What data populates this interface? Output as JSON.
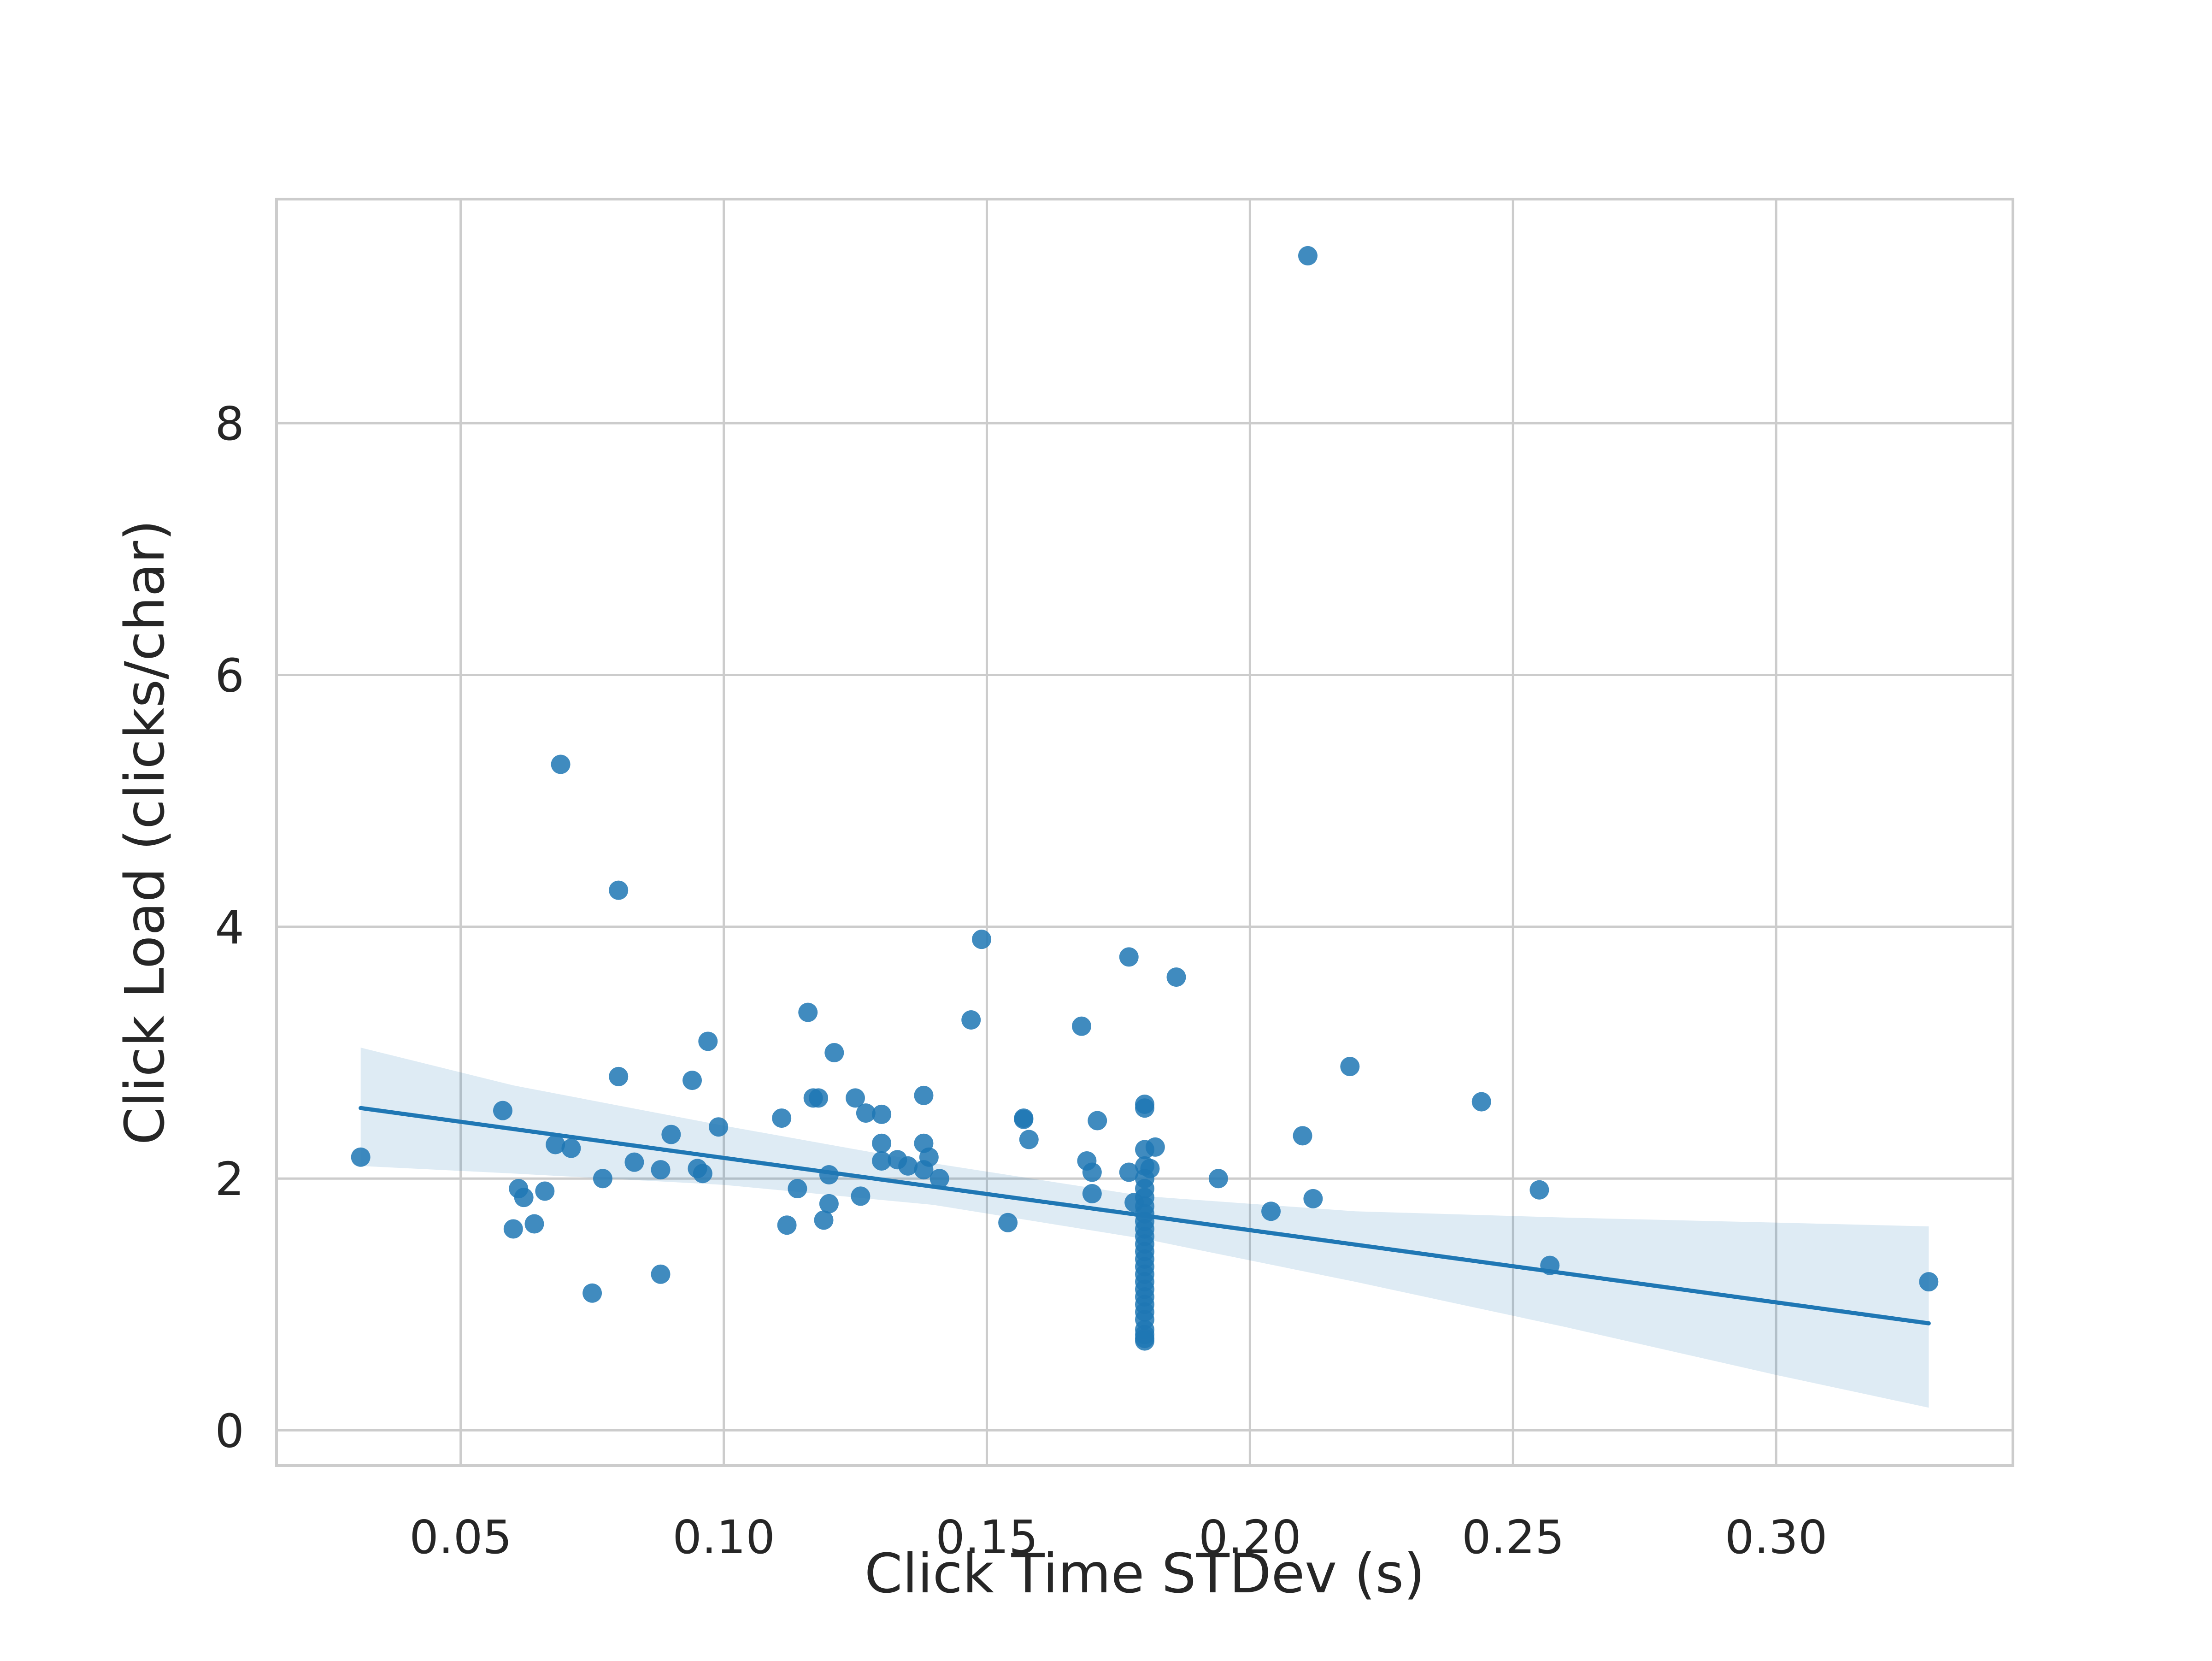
{
  "chart_data": {
    "type": "scatter",
    "title": "",
    "xlabel": "Click Time STDev (s)",
    "ylabel": "Click Load (clicks/char)",
    "xlim": [
      0.015,
      0.345
    ],
    "ylim": [
      -0.28,
      9.78
    ],
    "x_ticks": [
      0.05,
      0.1,
      0.15,
      0.2,
      0.25,
      0.3
    ],
    "x_tick_labels": [
      "0.05",
      "0.10",
      "0.15",
      "0.20",
      "0.25",
      "0.30"
    ],
    "y_ticks": [
      0,
      2,
      4,
      6,
      8
    ],
    "y_tick_labels": [
      "0",
      "2",
      "4",
      "6",
      "8"
    ],
    "grid": true,
    "legend": "none",
    "colors": {
      "points": "#1f77b4",
      "regression_line": "#1f77b4",
      "confidence_band": "#1f77b4",
      "grid": "#cccccc",
      "frame": "#cccccc",
      "background": "#ffffff"
    },
    "regression": {
      "x": [
        0.031,
        0.329
      ],
      "y": [
        2.56,
        0.85
      ]
    },
    "confidence_band": {
      "x": [
        0.031,
        0.06,
        0.1,
        0.14,
        0.18,
        0.22,
        0.26,
        0.3,
        0.329
      ],
      "upper": [
        3.04,
        2.74,
        2.42,
        2.12,
        1.86,
        1.74,
        1.69,
        1.65,
        1.62
      ],
      "lower": [
        2.1,
        2.04,
        1.95,
        1.79,
        1.52,
        1.18,
        0.82,
        0.44,
        0.18
      ]
    },
    "series": [
      {
        "points": [
          [
            0.031,
            2.17
          ],
          [
            0.058,
            2.54
          ],
          [
            0.06,
            1.6
          ],
          [
            0.061,
            1.92
          ],
          [
            0.062,
            1.85
          ],
          [
            0.064,
            1.64
          ],
          [
            0.066,
            1.9
          ],
          [
            0.068,
            2.27
          ],
          [
            0.069,
            5.29
          ],
          [
            0.071,
            2.24
          ],
          [
            0.075,
            1.09
          ],
          [
            0.077,
            2.0
          ],
          [
            0.08,
            4.29
          ],
          [
            0.08,
            2.81
          ],
          [
            0.083,
            2.13
          ],
          [
            0.088,
            1.24
          ],
          [
            0.088,
            2.07
          ],
          [
            0.09,
            2.35
          ],
          [
            0.094,
            2.78
          ],
          [
            0.095,
            2.08
          ],
          [
            0.096,
            2.04
          ],
          [
            0.097,
            3.09
          ],
          [
            0.099,
            2.41
          ],
          [
            0.111,
            2.48
          ],
          [
            0.112,
            1.63
          ],
          [
            0.114,
            1.92
          ],
          [
            0.116,
            3.32
          ],
          [
            0.117,
            2.64
          ],
          [
            0.118,
            2.64
          ],
          [
            0.119,
            1.67
          ],
          [
            0.12,
            2.03
          ],
          [
            0.12,
            1.8
          ],
          [
            0.121,
            3.0
          ],
          [
            0.125,
            2.64
          ],
          [
            0.126,
            1.86
          ],
          [
            0.127,
            2.52
          ],
          [
            0.13,
            2.51
          ],
          [
            0.13,
            2.28
          ],
          [
            0.13,
            2.14
          ],
          [
            0.133,
            2.15
          ],
          [
            0.135,
            2.1
          ],
          [
            0.138,
            2.66
          ],
          [
            0.138,
            2.28
          ],
          [
            0.138,
            2.07
          ],
          [
            0.139,
            2.17
          ],
          [
            0.141,
            2.0
          ],
          [
            0.147,
            3.26
          ],
          [
            0.149,
            3.9
          ],
          [
            0.154,
            1.65
          ],
          [
            0.157,
            2.48
          ],
          [
            0.157,
            2.47
          ],
          [
            0.158,
            2.31
          ],
          [
            0.168,
            3.21
          ],
          [
            0.169,
            2.14
          ],
          [
            0.17,
            2.05
          ],
          [
            0.17,
            1.88
          ],
          [
            0.171,
            2.46
          ],
          [
            0.177,
            3.76
          ],
          [
            0.177,
            2.05
          ],
          [
            0.178,
            1.81
          ],
          [
            0.18,
            2.59
          ],
          [
            0.18,
            2.56
          ],
          [
            0.18,
            2.23
          ],
          [
            0.18,
            2.1
          ],
          [
            0.18,
            2.0
          ],
          [
            0.18,
            1.92
          ],
          [
            0.18,
            1.85
          ],
          [
            0.18,
            1.78
          ],
          [
            0.18,
            1.72
          ],
          [
            0.18,
            1.66
          ],
          [
            0.18,
            1.6
          ],
          [
            0.18,
            1.54
          ],
          [
            0.18,
            1.48
          ],
          [
            0.18,
            1.42
          ],
          [
            0.18,
            1.36
          ],
          [
            0.18,
            1.3
          ],
          [
            0.18,
            1.24
          ],
          [
            0.18,
            1.18
          ],
          [
            0.18,
            1.12
          ],
          [
            0.18,
            1.06
          ],
          [
            0.18,
            1.0
          ],
          [
            0.18,
            0.94
          ],
          [
            0.18,
            0.88
          ],
          [
            0.18,
            0.8
          ],
          [
            0.18,
            0.76
          ],
          [
            0.18,
            0.73
          ],
          [
            0.18,
            0.71
          ],
          [
            0.181,
            2.08
          ],
          [
            0.182,
            2.25
          ],
          [
            0.186,
            3.6
          ],
          [
            0.194,
            2.0
          ],
          [
            0.204,
            1.74
          ],
          [
            0.21,
            2.34
          ],
          [
            0.211,
            9.33
          ],
          [
            0.212,
            1.84
          ],
          [
            0.219,
            2.89
          ],
          [
            0.244,
            2.61
          ],
          [
            0.255,
            1.91
          ],
          [
            0.257,
            1.31
          ],
          [
            0.329,
            1.18
          ]
        ]
      }
    ]
  }
}
